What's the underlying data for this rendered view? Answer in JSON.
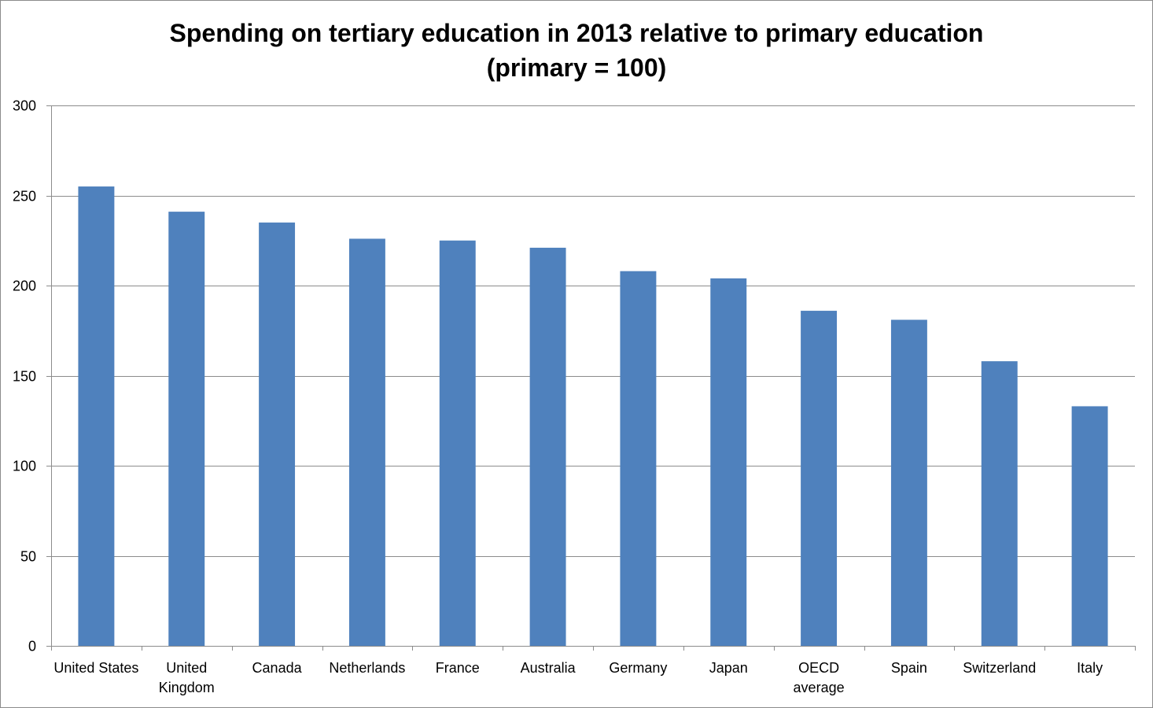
{
  "chart_data": {
    "type": "bar",
    "title": [
      "Spending on tertiary education in 2013 relative to primary education",
      "(primary = 100)"
    ],
    "xlabel": "",
    "ylabel": "",
    "categories": [
      [
        "United States"
      ],
      [
        "United",
        "Kingdom"
      ],
      [
        "Canada"
      ],
      [
        "Netherlands"
      ],
      [
        "France"
      ],
      [
        "Australia"
      ],
      [
        "Germany"
      ],
      [
        "Japan"
      ],
      [
        "OECD",
        "average"
      ],
      [
        "Spain"
      ],
      [
        "Switzerland"
      ],
      [
        "Italy"
      ]
    ],
    "values": [
      255,
      241,
      235,
      226,
      225,
      221,
      208,
      204,
      186,
      181,
      158,
      133
    ],
    "ylim": [
      0,
      300
    ],
    "yticks": [
      0,
      50,
      100,
      150,
      200,
      250,
      300
    ],
    "grid": true,
    "legend": "none",
    "colors": {
      "bar": "#4f81bd",
      "grid": "#8c8c8c",
      "axis": "#8c8c8c"
    }
  }
}
